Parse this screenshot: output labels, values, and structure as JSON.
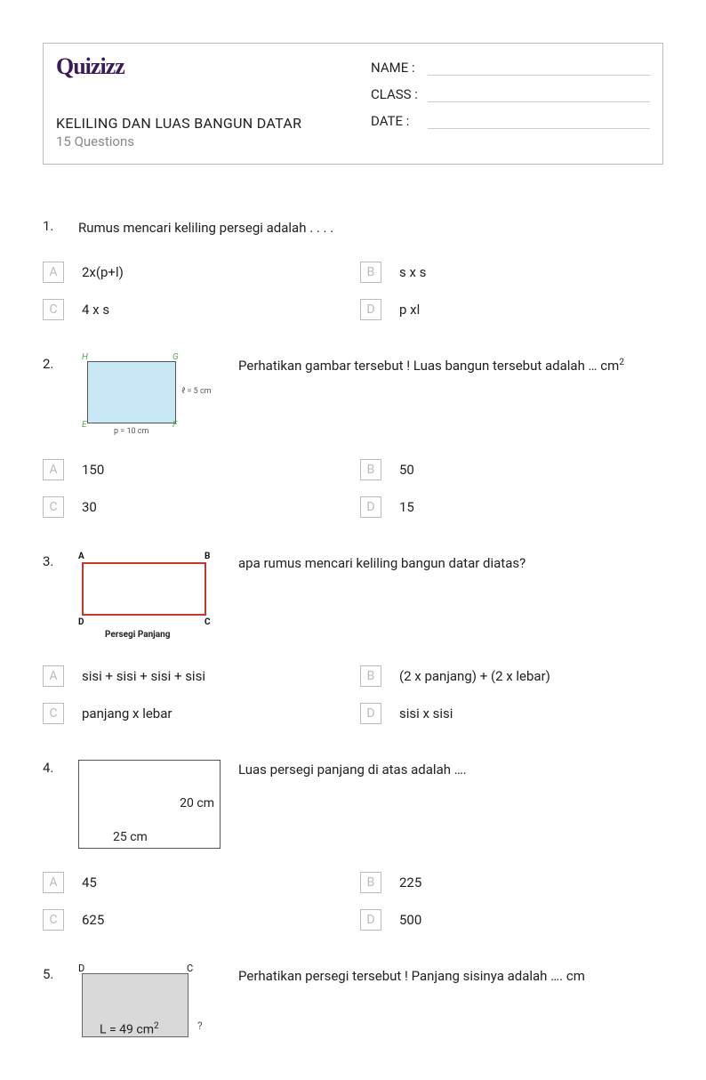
{
  "header": {
    "logo_text": "Quizizz",
    "title": "KELILING DAN LUAS BANGUN DATAR",
    "subtitle": "15 Questions",
    "fields": [
      {
        "label": "NAME :"
      },
      {
        "label": "CLASS :"
      },
      {
        "label": "DATE  :"
      }
    ]
  },
  "questions": [
    {
      "num": "1.",
      "text": "Rumus mencari keliling persegi adalah . . . .",
      "answers": {
        "A": "2x(p+l)",
        "B": "s x s",
        "C": "4 x s",
        "D": "p xl"
      }
    },
    {
      "num": "2.",
      "text_prefix": "Perhatikan gambar tersebut ! Luas bangun tersebut adalah … cm",
      "text_sup": "2",
      "figure": {
        "type": "rectangle_labeled",
        "corners": {
          "TL": "H",
          "TR": "G",
          "BL": "E",
          "BR": "F"
        },
        "side_right": "ℓ = 5 cm",
        "side_bottom": "p = 10 cm",
        "fill": "#c9e8f5",
        "border": "#555555"
      },
      "answers": {
        "A": "150",
        "B": "50",
        "C": "30",
        "D": "15"
      }
    },
    {
      "num": "3.",
      "text": "apa rumus mencari keliling bangun datar diatas?",
      "figure": {
        "type": "rectangle_plain",
        "corners": {
          "TL": "A",
          "TR": "B",
          "BL": "D",
          "BR": "C"
        },
        "caption": "Persegi Panjang",
        "border": "#c0392b"
      },
      "answers": {
        "A": "sisi + sisi + sisi + sisi",
        "B": "(2 x panjang) + (2 x lebar)",
        "C": "panjang x lebar",
        "D": "sisi x sisi"
      }
    },
    {
      "num": "4.",
      "text": "Luas persegi panjang di atas adalah ….",
      "figure": {
        "type": "rectangle_dims",
        "side_right": "20 cm",
        "side_bottom": "25 cm",
        "border": "#555555"
      },
      "answers": {
        "A": "45",
        "B": "225",
        "C": "625",
        "D": "500"
      }
    },
    {
      "num": "5.",
      "text": "Perhatikan persegi tersebut ! Panjang sisinya adalah …. cm",
      "figure": {
        "type": "square_area",
        "corners": {
          "TL": "D",
          "TR": "C"
        },
        "area_label_prefix": "L = 49 cm",
        "area_label_sup": "2",
        "side_mark": "?",
        "fill": "#d9d9d9",
        "border": "#666666"
      }
    }
  ],
  "letters": [
    "A",
    "B",
    "C",
    "D"
  ]
}
